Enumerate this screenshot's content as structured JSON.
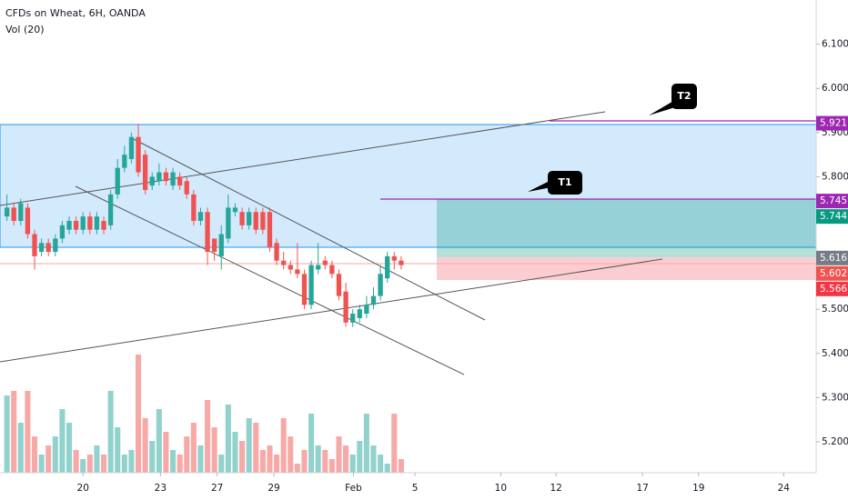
{
  "chart_data": {
    "type": "candlestick",
    "title": "CFDs on Wheat, 6H, OANDA",
    "volume_label": "Vol (20)",
    "up_color": "#26a69a",
    "down_color": "#ef5350",
    "open": [
      5.71,
      5.73,
      5.7,
      5.73,
      5.67,
      5.63,
      5.65,
      5.63,
      5.66,
      5.68,
      5.7,
      5.68,
      5.71,
      5.68,
      5.7,
      5.69,
      5.76,
      5.82,
      5.84,
      5.89,
      5.85,
      5.78,
      5.79,
      5.81,
      5.78,
      5.8,
      5.79,
      5.76,
      5.7,
      5.72,
      5.66,
      5.62,
      5.66,
      5.72,
      5.72,
      5.69,
      5.72,
      5.72,
      5.72,
      5.65,
      5.61,
      5.6,
      5.59,
      5.58,
      5.51,
      5.59,
      5.61,
      5.6,
      5.58,
      5.54,
      5.47,
      5.48,
      5.49,
      5.51,
      5.53,
      5.57,
      5.62,
      5.61
    ],
    "high": [
      5.76,
      5.74,
      5.75,
      5.74,
      5.68,
      5.66,
      5.66,
      5.67,
      5.7,
      5.71,
      5.71,
      5.72,
      5.72,
      5.72,
      5.71,
      5.77,
      5.84,
      5.87,
      5.9,
      5.92,
      5.86,
      5.81,
      5.83,
      5.82,
      5.82,
      5.81,
      5.8,
      5.77,
      5.73,
      5.73,
      5.66,
      5.69,
      5.76,
      5.74,
      5.73,
      5.73,
      5.73,
      5.73,
      5.73,
      5.66,
      5.63,
      5.61,
      5.65,
      5.59,
      5.61,
      5.65,
      5.62,
      5.61,
      5.59,
      5.56,
      5.5,
      5.51,
      5.53,
      5.55,
      5.6,
      5.63,
      5.63,
      5.62
    ],
    "low": [
      5.7,
      5.69,
      5.69,
      5.66,
      5.59,
      5.62,
      5.62,
      5.62,
      5.65,
      5.67,
      5.67,
      5.67,
      5.67,
      5.67,
      5.67,
      5.68,
      5.75,
      5.81,
      5.83,
      5.8,
      5.76,
      5.77,
      5.78,
      5.78,
      5.77,
      5.77,
      5.75,
      5.69,
      5.69,
      5.6,
      5.61,
      5.59,
      5.65,
      5.71,
      5.68,
      5.68,
      5.67,
      5.67,
      5.63,
      5.6,
      5.59,
      5.58,
      5.57,
      5.5,
      5.5,
      5.58,
      5.59,
      5.57,
      5.52,
      5.46,
      5.46,
      5.47,
      5.48,
      5.5,
      5.52,
      5.56,
      5.59,
      5.59
    ],
    "close": [
      5.73,
      5.7,
      5.74,
      5.67,
      5.62,
      5.65,
      5.63,
      5.66,
      5.69,
      5.7,
      5.68,
      5.71,
      5.68,
      5.71,
      5.68,
      5.76,
      5.82,
      5.85,
      5.89,
      5.81,
      5.77,
      5.8,
      5.81,
      5.79,
      5.81,
      5.78,
      5.76,
      5.7,
      5.72,
      5.63,
      5.63,
      5.67,
      5.73,
      5.73,
      5.69,
      5.72,
      5.68,
      5.68,
      5.64,
      5.61,
      5.6,
      5.59,
      5.58,
      5.51,
      5.6,
      5.6,
      5.6,
      5.58,
      5.53,
      5.47,
      5.49,
      5.5,
      5.51,
      5.53,
      5.58,
      5.62,
      5.61,
      5.6
    ],
    "volume": [
      85,
      90,
      55,
      90,
      40,
      20,
      30,
      40,
      70,
      55,
      25,
      15,
      20,
      30,
      20,
      90,
      50,
      20,
      25,
      130,
      60,
      35,
      70,
      45,
      25,
      20,
      40,
      55,
      30,
      80,
      50,
      20,
      75,
      45,
      35,
      60,
      55,
      25,
      30,
      20,
      60,
      40,
      10,
      25,
      65,
      30,
      25,
      15,
      40,
      30,
      20,
      35,
      65,
      30,
      20,
      10,
      65,
      15
    ],
    "xlim": [
      0,
      118
    ],
    "xticks": [
      {
        "value": 12.0,
        "label": "20"
      },
      {
        "value": 23.2,
        "label": "23"
      },
      {
        "value": 31.4,
        "label": "27"
      },
      {
        "value": 39.6,
        "label": "29"
      },
      {
        "value": 51.1,
        "label": "Feb"
      },
      {
        "value": 60,
        "label": "5"
      },
      {
        "value": 72.4,
        "label": "10"
      },
      {
        "value": 80.4,
        "label": "12"
      },
      {
        "value": 92.9,
        "label": "17"
      },
      {
        "value": 101,
        "label": "19"
      },
      {
        "value": 113.3,
        "label": "24"
      }
    ],
    "ylim": [
      5.13,
      6.2
    ],
    "yticks": [
      {
        "value": 5.2,
        "label": "5.200"
      },
      {
        "value": 5.3,
        "label": "5.300"
      },
      {
        "value": 5.4,
        "label": "5.400"
      },
      {
        "value": 5.5,
        "label": "5.500"
      },
      {
        "value": 5.7,
        "label": "5.700"
      },
      {
        "value": 5.8,
        "label": "5.800"
      },
      {
        "value": 5.9,
        "label": "5.900"
      },
      {
        "value": 6.0,
        "label": "6.000"
      },
      {
        "value": 6.1,
        "label": "6.100"
      }
    ],
    "price_tags": [
      {
        "value": 5.921,
        "label": "5.921",
        "color": "#9c27b0"
      },
      {
        "value": 5.745,
        "label": "5.745",
        "color": "#9c27b0"
      },
      {
        "value": 5.744,
        "label": "5.744",
        "color": "#089981"
      },
      {
        "value": 5.616,
        "label": "5.616",
        "color": "#787b86"
      },
      {
        "value": 5.602,
        "label": "5.602",
        "color": "#ef5350"
      },
      {
        "value": 5.566,
        "label": "5.566",
        "color": "#f23645"
      }
    ],
    "annotations": [
      "T1",
      "T2"
    ]
  }
}
